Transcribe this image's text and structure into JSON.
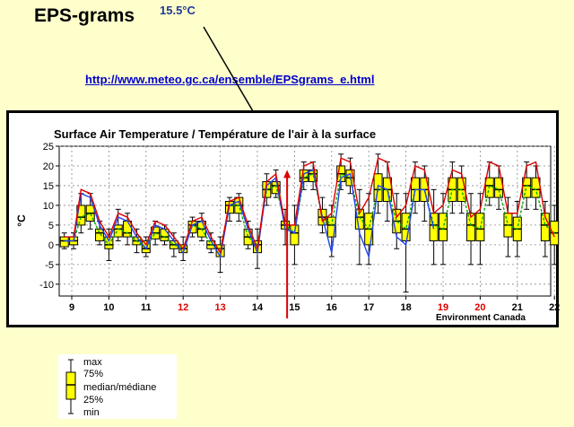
{
  "slide": {
    "title": "EPS-grams",
    "temperature_note": "15.5°C",
    "url": "http://www.meteo.gc.ca/ensemble/EPSgrams_e.html"
  },
  "chart_data": {
    "type": "boxplot",
    "title": "Surface Air Temperature / Température de l'air à la surface",
    "ylabel": "°C",
    "credit": "Environment Canada",
    "ylim": [
      -13,
      25
    ],
    "yticks": [
      -10,
      -5,
      0,
      5,
      10,
      15,
      20,
      25
    ],
    "days": [
      "9",
      "10",
      "11",
      "12",
      "13",
      "14",
      "15",
      "16",
      "17",
      "18",
      "19",
      "20",
      "21",
      "22"
    ],
    "weekend_days": [
      "12",
      "13",
      "19",
      "20"
    ],
    "x_unit": "days since day 9 label",
    "boxes": [
      {
        "t": -0.2,
        "min": -1,
        "q1": -0.5,
        "med": 1,
        "q3": 2,
        "max": 3
      },
      {
        "t": 0.05,
        "min": -1,
        "q1": 0,
        "med": 1,
        "q3": 2,
        "max": 3
      },
      {
        "t": 0.25,
        "min": 3,
        "q1": 5,
        "med": 7,
        "q3": 10,
        "max": 13
      },
      {
        "t": 0.5,
        "min": 4,
        "q1": 6,
        "med": 8,
        "q3": 10,
        "max": 13
      },
      {
        "t": 0.75,
        "min": 0,
        "q1": 1,
        "med": 3,
        "q3": 4,
        "max": 6
      },
      {
        "t": 1.0,
        "min": -4,
        "q1": -1,
        "med": 0,
        "q3": 2,
        "max": 4
      },
      {
        "t": 1.25,
        "min": 1,
        "q1": 2,
        "med": 4,
        "q3": 5,
        "max": 9
      },
      {
        "t": 1.5,
        "min": 0,
        "q1": 2,
        "med": 3,
        "q3": 6,
        "max": 8
      },
      {
        "t": 1.75,
        "min": -2,
        "q1": 0,
        "med": 1,
        "q3": 2,
        "max": 4
      },
      {
        "t": 2.0,
        "min": -3,
        "q1": -2,
        "med": -1,
        "q3": 1,
        "max": 2
      },
      {
        "t": 2.25,
        "min": 0,
        "q1": 1.5,
        "med": 3,
        "q3": 4.5,
        "max": 6
      },
      {
        "t": 2.5,
        "min": 0,
        "q1": 1,
        "med": 2,
        "q3": 4,
        "max": 5
      },
      {
        "t": 2.75,
        "min": -3,
        "q1": -1,
        "med": 0,
        "q3": 1,
        "max": 3
      },
      {
        "t": 3.0,
        "min": -4,
        "q1": -2,
        "med": -1,
        "q3": 0,
        "max": 2
      },
      {
        "t": 3.25,
        "min": 2,
        "q1": 3,
        "med": 5,
        "q3": 6,
        "max": 7
      },
      {
        "t": 3.5,
        "min": 1,
        "q1": 2,
        "med": 4,
        "q3": 6,
        "max": 8
      },
      {
        "t": 3.75,
        "min": -2,
        "q1": -1,
        "med": 0,
        "q3": 1,
        "max": 3
      },
      {
        "t": 4.0,
        "min": -7,
        "q1": -3,
        "med": -1,
        "q3": 0,
        "max": 2
      },
      {
        "t": 4.25,
        "min": 6,
        "q1": 8,
        "med": 10,
        "q3": 11,
        "max": 12
      },
      {
        "t": 4.5,
        "min": 6,
        "q1": 8,
        "med": 10,
        "q3": 12,
        "max": 13
      },
      {
        "t": 4.75,
        "min": -1,
        "q1": 0,
        "med": 2,
        "q3": 4,
        "max": 6
      },
      {
        "t": 5.0,
        "min": -6,
        "q1": -2,
        "med": 0,
        "q3": 1,
        "max": 4
      },
      {
        "t": 5.25,
        "min": 10,
        "q1": 12,
        "med": 14,
        "q3": 16,
        "max": 18
      },
      {
        "t": 5.5,
        "min": 12,
        "q1": 13,
        "med": 15,
        "q3": 16,
        "max": 19
      },
      {
        "t": 5.75,
        "min": 0,
        "q1": 4,
        "med": 5,
        "q3": 6,
        "max": 9
      },
      {
        "t": 6.0,
        "min": -5,
        "q1": 0,
        "med": 3,
        "q3": 5,
        "max": 10
      },
      {
        "t": 6.25,
        "min": 14,
        "q1": 16,
        "med": 17,
        "q3": 19,
        "max": 21
      },
      {
        "t": 6.5,
        "min": 14,
        "q1": 16,
        "med": 18,
        "q3": 19,
        "max": 21
      },
      {
        "t": 6.75,
        "min": 3,
        "q1": 5,
        "med": 7,
        "q3": 9,
        "max": 12
      },
      {
        "t": 7.0,
        "min": -3,
        "q1": 2,
        "med": 5,
        "q3": 7,
        "max": 10
      },
      {
        "t": 7.25,
        "min": 14,
        "q1": 16,
        "med": 18,
        "q3": 20,
        "max": 23
      },
      {
        "t": 7.5,
        "min": 13,
        "q1": 15,
        "med": 17,
        "q3": 19,
        "max": 22
      },
      {
        "t": 7.75,
        "min": -5,
        "q1": 4,
        "med": 7,
        "q3": 9,
        "max": 14
      },
      {
        "t": 8.0,
        "min": -5,
        "q1": 0,
        "med": 4,
        "q3": 8,
        "max": 13
      },
      {
        "t": 8.25,
        "min": 8,
        "q1": 11,
        "med": 14,
        "q3": 18,
        "max": 23
      },
      {
        "t": 8.5,
        "min": 6,
        "q1": 11,
        "med": 14,
        "q3": 17,
        "max": 21
      },
      {
        "t": 8.75,
        "min": -1,
        "q1": 3,
        "med": 6,
        "q3": 9,
        "max": 13
      },
      {
        "t": 9.0,
        "min": -12,
        "q1": 1,
        "med": 4,
        "q3": 8,
        "max": 13
      },
      {
        "t": 9.25,
        "min": 8,
        "q1": 11,
        "med": 14,
        "q3": 17,
        "max": 21
      },
      {
        "t": 9.5,
        "min": 6,
        "q1": 11,
        "med": 14,
        "q3": 17,
        "max": 20
      },
      {
        "t": 9.75,
        "min": -5,
        "q1": 1,
        "med": 5,
        "q3": 8,
        "max": 14
      },
      {
        "t": 10.0,
        "min": -5,
        "q1": 1,
        "med": 4,
        "q3": 8,
        "max": 13
      },
      {
        "t": 10.25,
        "min": 8,
        "q1": 11,
        "med": 14,
        "q3": 17,
        "max": 21
      },
      {
        "t": 10.5,
        "min": 8,
        "q1": 11,
        "med": 14,
        "q3": 17,
        "max": 20
      },
      {
        "t": 10.75,
        "min": -5,
        "q1": 1,
        "med": 5,
        "q3": 8,
        "max": 13
      },
      {
        "t": 11.0,
        "min": -5,
        "q1": 1,
        "med": 4,
        "q3": 8,
        "max": 13
      },
      {
        "t": 11.25,
        "min": 10,
        "q1": 12,
        "med": 15,
        "q3": 17,
        "max": 21
      },
      {
        "t": 11.5,
        "min": 9,
        "q1": 12,
        "med": 14,
        "q3": 17,
        "max": 20
      },
      {
        "t": 11.75,
        "min": -3,
        "q1": 2,
        "med": 5,
        "q3": 8,
        "max": 12
      },
      {
        "t": 12.0,
        "min": -3,
        "q1": 1,
        "med": 4,
        "q3": 7,
        "max": 11
      },
      {
        "t": 12.25,
        "min": 9,
        "q1": 12,
        "med": 15,
        "q3": 17,
        "max": 21
      },
      {
        "t": 12.5,
        "min": 9,
        "q1": 12,
        "med": 14,
        "q3": 17,
        "max": 20
      },
      {
        "t": 12.75,
        "min": -3,
        "q1": 1,
        "med": 5,
        "q3": 8,
        "max": 11
      },
      {
        "t": 13.0,
        "min": -5,
        "q1": 0,
        "med": 3,
        "q3": 6,
        "max": 10
      }
    ],
    "red_line": [
      {
        "t": -0.2,
        "v": 2
      },
      {
        "t": 0.05,
        "v": 2
      },
      {
        "t": 0.25,
        "v": 14
      },
      {
        "t": 0.5,
        "v": 13
      },
      {
        "t": 0.75,
        "v": 6
      },
      {
        "t": 1.0,
        "v": 2
      },
      {
        "t": 1.25,
        "v": 8
      },
      {
        "t": 1.5,
        "v": 7
      },
      {
        "t": 1.75,
        "v": 3
      },
      {
        "t": 2.0,
        "v": 0
      },
      {
        "t": 2.25,
        "v": 6
      },
      {
        "t": 2.5,
        "v": 5
      },
      {
        "t": 2.75,
        "v": 2
      },
      {
        "t": 3.0,
        "v": -1
      },
      {
        "t": 3.25,
        "v": 6
      },
      {
        "t": 3.5,
        "v": 7
      },
      {
        "t": 3.75,
        "v": 2
      },
      {
        "t": 4.0,
        "v": -2
      },
      {
        "t": 4.25,
        "v": 11
      },
      {
        "t": 4.5,
        "v": 12
      },
      {
        "t": 4.75,
        "v": 5
      },
      {
        "t": 5.0,
        "v": -1
      },
      {
        "t": 5.25,
        "v": 16
      },
      {
        "t": 5.5,
        "v": 18
      },
      {
        "t": 5.75,
        "v": 5
      },
      {
        "t": 6.0,
        "v": 5
      },
      {
        "t": 6.25,
        "v": 20
      },
      {
        "t": 6.5,
        "v": 21
      },
      {
        "t": 6.75,
        "v": 6
      },
      {
        "t": 7.0,
        "v": 8
      },
      {
        "t": 7.25,
        "v": 22
      },
      {
        "t": 7.5,
        "v": 21
      },
      {
        "t": 7.75,
        "v": 8
      },
      {
        "t": 8.0,
        "v": 12
      },
      {
        "t": 8.25,
        "v": 22
      },
      {
        "t": 8.5,
        "v": 21
      },
      {
        "t": 8.75,
        "v": 7
      },
      {
        "t": 9.0,
        "v": 10
      },
      {
        "t": 9.25,
        "v": 20
      },
      {
        "t": 9.5,
        "v": 19
      },
      {
        "t": 9.75,
        "v": 8
      },
      {
        "t": 10.0,
        "v": 10
      },
      {
        "t": 10.25,
        "v": 19
      },
      {
        "t": 10.5,
        "v": 18
      },
      {
        "t": 10.75,
        "v": 7
      },
      {
        "t": 11.0,
        "v": 9
      },
      {
        "t": 11.25,
        "v": 21
      },
      {
        "t": 11.5,
        "v": 20
      },
      {
        "t": 11.75,
        "v": 8
      },
      {
        "t": 12.0,
        "v": 8
      },
      {
        "t": 12.25,
        "v": 20
      },
      {
        "t": 12.5,
        "v": 21
      },
      {
        "t": 12.75,
        "v": 7
      },
      {
        "t": 13.0,
        "v": 2
      }
    ],
    "blue_line": [
      {
        "t": -0.2,
        "v": 1
      },
      {
        "t": 0.05,
        "v": 1
      },
      {
        "t": 0.25,
        "v": 13
      },
      {
        "t": 0.5,
        "v": 12
      },
      {
        "t": 0.75,
        "v": 5
      },
      {
        "t": 1.0,
        "v": 1
      },
      {
        "t": 1.25,
        "v": 7
      },
      {
        "t": 1.5,
        "v": 6
      },
      {
        "t": 1.75,
        "v": 2
      },
      {
        "t": 2.0,
        "v": -1
      },
      {
        "t": 2.25,
        "v": 5
      },
      {
        "t": 2.5,
        "v": 4
      },
      {
        "t": 2.75,
        "v": 1
      },
      {
        "t": 3.0,
        "v": -2
      },
      {
        "t": 3.25,
        "v": 5
      },
      {
        "t": 3.5,
        "v": 6
      },
      {
        "t": 3.75,
        "v": 1
      },
      {
        "t": 4.0,
        "v": -3
      },
      {
        "t": 4.25,
        "v": 10
      },
      {
        "t": 4.5,
        "v": 11
      },
      {
        "t": 4.75,
        "v": 4
      },
      {
        "t": 5.0,
        "v": -2
      },
      {
        "t": 5.25,
        "v": 15
      },
      {
        "t": 5.5,
        "v": 17
      },
      {
        "t": 5.75,
        "v": 4
      },
      {
        "t": 6.0,
        "v": 3
      },
      {
        "t": 6.25,
        "v": 18
      },
      {
        "t": 6.5,
        "v": 19
      },
      {
        "t": 6.75,
        "v": 7
      },
      {
        "t": 7.0,
        "v": -2
      },
      {
        "t": 7.25,
        "v": 17
      },
      {
        "t": 7.5,
        "v": 18
      },
      {
        "t": 7.75,
        "v": 3
      },
      {
        "t": 8.0,
        "v": -3
      },
      {
        "t": 8.25,
        "v": 15
      },
      {
        "t": 8.5,
        "v": 14
      },
      {
        "t": 8.75,
        "v": 2
      },
      {
        "t": 9.0,
        "v": 0
      },
      {
        "t": 9.25,
        "v": 14
      },
      {
        "t": 9.5,
        "v": 14
      },
      {
        "t": 9.75,
        "v": 4
      }
    ],
    "green_line": [
      {
        "t": -0.2,
        "v": 1
      },
      {
        "t": 0.05,
        "v": 1
      },
      {
        "t": 0.25,
        "v": 7
      },
      {
        "t": 0.5,
        "v": 8
      },
      {
        "t": 0.75,
        "v": 3
      },
      {
        "t": 1.0,
        "v": 0
      },
      {
        "t": 1.25,
        "v": 4
      },
      {
        "t": 1.5,
        "v": 3
      },
      {
        "t": 1.75,
        "v": 1
      },
      {
        "t": 2.0,
        "v": -1
      },
      {
        "t": 2.25,
        "v": 3
      },
      {
        "t": 2.5,
        "v": 2
      },
      {
        "t": 2.75,
        "v": 0
      },
      {
        "t": 3.0,
        "v": -1
      },
      {
        "t": 3.25,
        "v": 5
      },
      {
        "t": 3.5,
        "v": 4
      },
      {
        "t": 3.75,
        "v": 0
      },
      {
        "t": 4.0,
        "v": -1
      },
      {
        "t": 4.25,
        "v": 10
      },
      {
        "t": 4.5,
        "v": 10
      },
      {
        "t": 4.75,
        "v": 2
      },
      {
        "t": 5.0,
        "v": 0
      },
      {
        "t": 5.25,
        "v": 14
      },
      {
        "t": 5.5,
        "v": 15
      },
      {
        "t": 5.75,
        "v": 5
      },
      {
        "t": 6.0,
        "v": 3
      },
      {
        "t": 6.25,
        "v": 17
      },
      {
        "t": 6.5,
        "v": 18
      },
      {
        "t": 6.75,
        "v": 7
      },
      {
        "t": 7.0,
        "v": 5
      },
      {
        "t": 7.25,
        "v": 18
      },
      {
        "t": 7.5,
        "v": 17
      },
      {
        "t": 7.75,
        "v": 7
      },
      {
        "t": 8.0,
        "v": 4
      },
      {
        "t": 8.25,
        "v": 14
      },
      {
        "t": 8.5,
        "v": 14
      },
      {
        "t": 8.75,
        "v": 6
      },
      {
        "t": 9.0,
        "v": 4
      },
      {
        "t": 9.25,
        "v": 14
      },
      {
        "t": 9.5,
        "v": 14
      },
      {
        "t": 9.75,
        "v": 5
      },
      {
        "t": 10.0,
        "v": 4
      },
      {
        "t": 10.25,
        "v": 14
      },
      {
        "t": 10.5,
        "v": 14
      },
      {
        "t": 10.75,
        "v": 5
      },
      {
        "t": 11.0,
        "v": 4
      },
      {
        "t": 11.25,
        "v": 15
      },
      {
        "t": 11.5,
        "v": 14
      },
      {
        "t": 11.75,
        "v": 5
      },
      {
        "t": 12.0,
        "v": 4
      },
      {
        "t": 12.25,
        "v": 15
      },
      {
        "t": 12.5,
        "v": 14
      },
      {
        "t": 12.75,
        "v": 5
      },
      {
        "t": 13.0,
        "v": 3
      }
    ],
    "red_arrow_t": 5.8,
    "colors": {
      "box": "#ffff00",
      "red": "#dd0000",
      "blue": "#2244ee",
      "green": "#00aa00",
      "weekend": "#dd0000",
      "grid": "#888888"
    }
  },
  "legend": {
    "labels": [
      "max",
      "75%",
      "median/médiane",
      "25%",
      "min"
    ]
  }
}
